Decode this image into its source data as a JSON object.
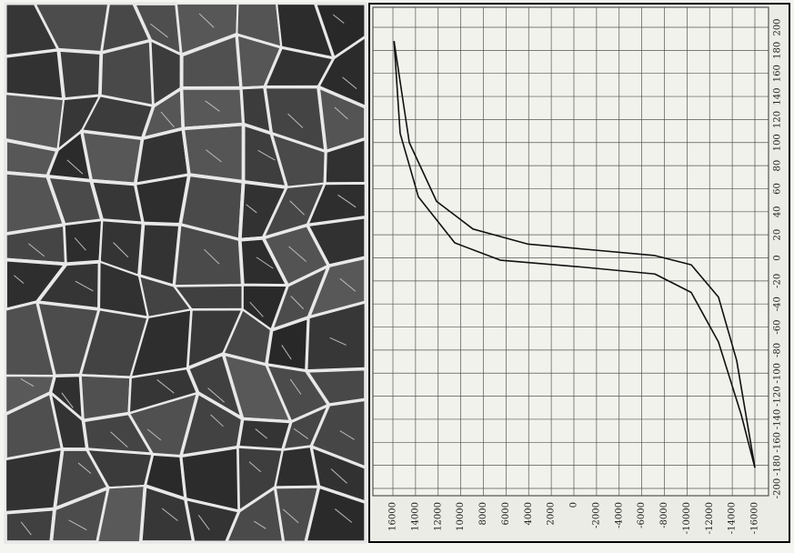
{
  "chart_data": {
    "type": "line",
    "xlim": [
      16000,
      -16000
    ],
    "xticks": [
      16000,
      14000,
      12000,
      10000,
      8000,
      6000,
      4000,
      2000,
      0,
      -2000,
      -4000,
      -6000,
      -8000,
      -10000,
      -12000,
      -14000,
      -16000
    ],
    "ylim": [
      -200,
      200
    ],
    "yticks": [
      -200,
      -180,
      -160,
      -140,
      -120,
      -100,
      -80,
      -60,
      -40,
      -20,
      0,
      20,
      40,
      60,
      80,
      100,
      120,
      140,
      160,
      180,
      200
    ],
    "grid": true,
    "series": [
      {
        "color": "#111111",
        "x": [
          15900,
          14550,
          12140,
          8920,
          4100,
          -1530,
          -7160,
          -10370,
          -12780,
          -14390,
          -16000
        ],
        "values": [
          188,
          100,
          49,
          25,
          12,
          7,
          2,
          -6,
          -34,
          -89,
          -182
        ]
      },
      {
        "color": "#111111",
        "x": [
          15900,
          15360,
          13750,
          10530,
          6510,
          -720,
          -7160,
          -10370,
          -12780,
          -14790,
          -16000
        ],
        "values": [
          188,
          108,
          53,
          13,
          -2,
          -8,
          -14,
          -30,
          -73,
          -136,
          -182
        ]
      }
    ]
  }
}
